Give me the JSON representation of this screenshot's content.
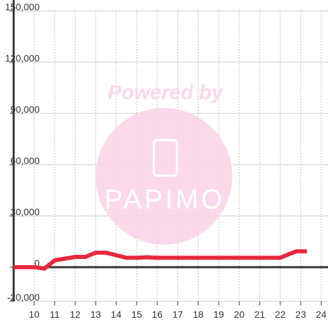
{
  "chart_data": {
    "type": "line",
    "watermark": {
      "title": "Powered by",
      "brand": "PAPIMO"
    },
    "x": [
      9,
      10,
      10.5,
      11,
      11.5,
      12,
      12.5,
      13,
      13.5,
      14,
      14.5,
      15,
      15.5,
      16,
      17,
      18,
      19,
      20,
      21,
      22,
      22.5,
      22.8,
      23.3
    ],
    "series": [
      {
        "color": "#e8283c",
        "values": [
          0,
          0,
          -800,
          4000,
          5000,
          6000,
          6000,
          8500,
          8500,
          7000,
          5500,
          5500,
          5800,
          5500,
          5500,
          5500,
          5500,
          5500,
          5500,
          5500,
          8000,
          9300,
          9300
        ]
      }
    ],
    "xlim": [
      9,
      24.33
    ],
    "xticks": [
      10,
      11,
      12,
      13,
      14,
      15,
      16,
      17,
      18,
      19,
      20,
      21,
      22,
      23,
      24
    ],
    "ylim": [
      -20000,
      150000
    ],
    "yticks": [
      {
        "value": -20000,
        "label": "-20,000"
      },
      0,
      {
        "value": 30000,
        "label": "30,000"
      },
      {
        "value": 60000,
        "label": "60,000"
      },
      {
        "value": 90000,
        "label": "90,000"
      },
      {
        "value": 120000,
        "label": "120,000"
      },
      {
        "value": 150000,
        "label": "150,000"
      }
    ],
    "grid": true
  }
}
